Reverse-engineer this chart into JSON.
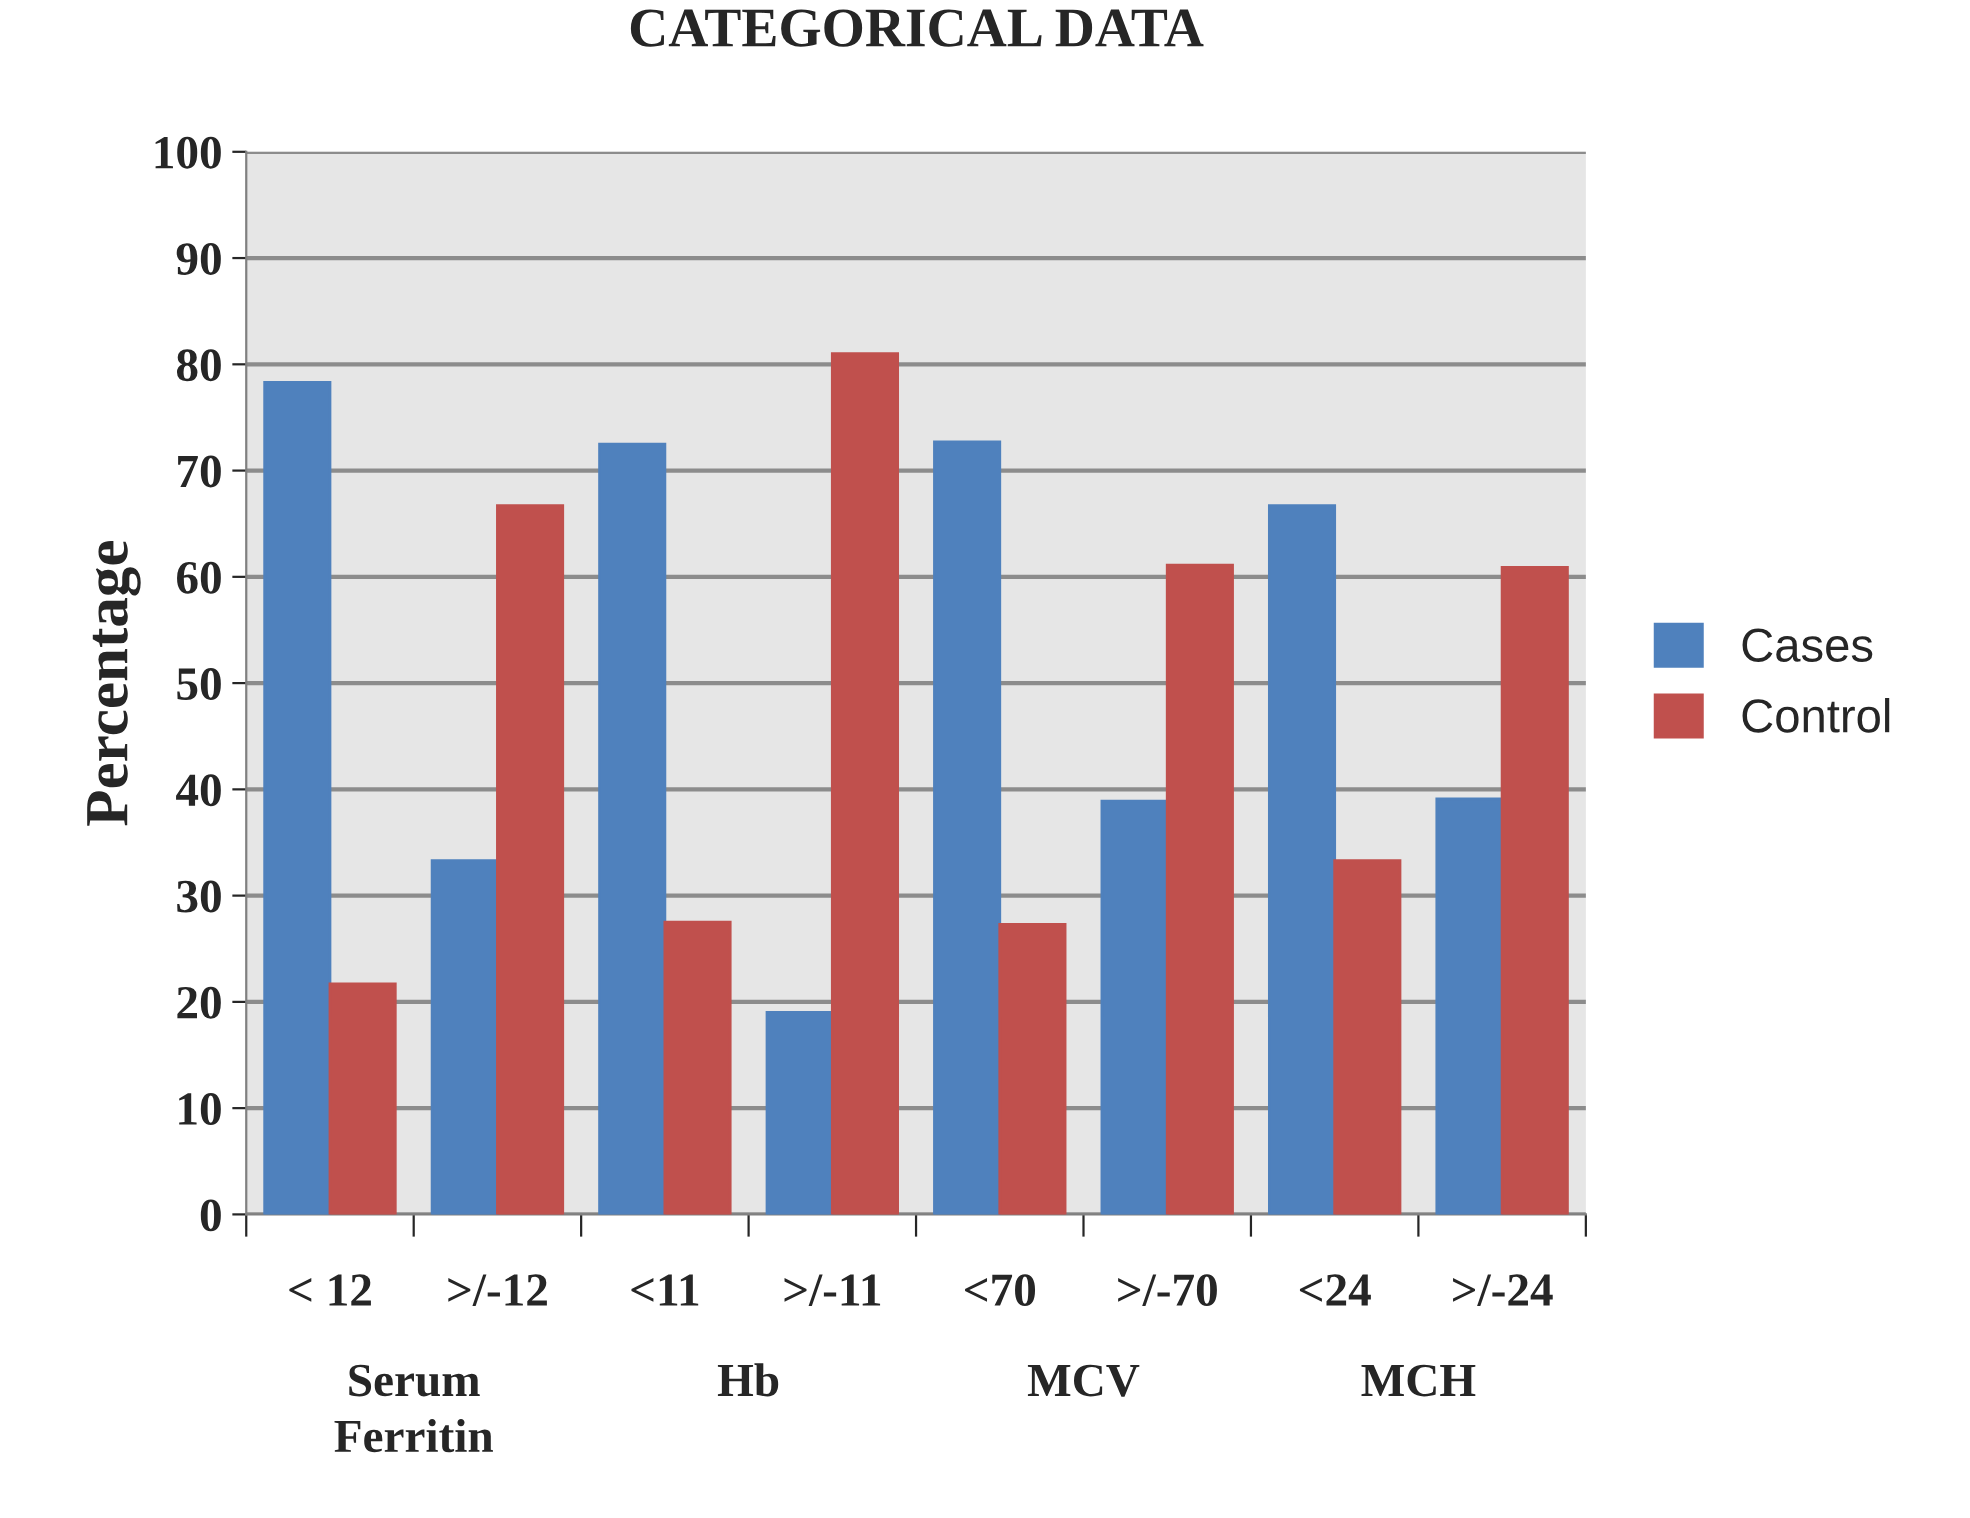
{
  "chart_data": {
    "type": "bar",
    "title": "CATEGORICAL DATA",
    "ylabel": "Percentage",
    "categories": [
      "< 12",
      ">/-12",
      "<11",
      ">/-11",
      "<70",
      ">/-70",
      "<24",
      ">/-24"
    ],
    "series": [
      {
        "name": "Cases",
        "color": "#4f81bd",
        "values": [
          78.3,
          33.3,
          72.5,
          19.0,
          72.7,
          38.9,
          66.7,
          39.1
        ]
      },
      {
        "name": "Control",
        "color": "#c0504d",
        "values": [
          21.7,
          66.7,
          27.5,
          81.0,
          27.3,
          61.1,
          33.3,
          60.9
        ]
      }
    ],
    "annotations": [
      "Serum\nFerritin",
      "Hb",
      "MCV",
      "MCH"
    ],
    "ylim": [
      0,
      100
    ],
    "yticks": [
      0,
      10,
      20,
      30,
      40,
      50,
      60,
      70,
      80,
      90,
      100
    ],
    "grid": "y",
    "legend": "right"
  }
}
